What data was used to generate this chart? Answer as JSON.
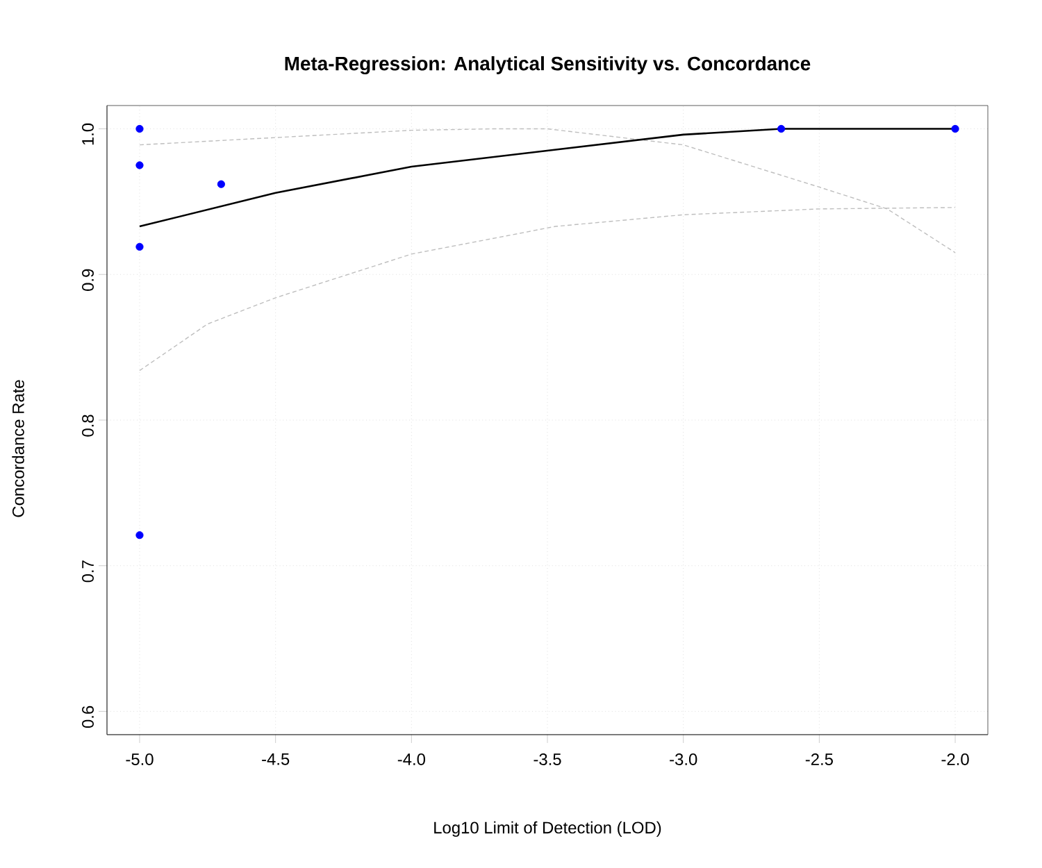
{
  "chart_data": {
    "type": "scatter",
    "title": "Meta-Regression: Analytical Sensitivity vs. Concordance",
    "xlabel": "Log10 Limit of Detection (LOD)",
    "ylabel": "Concordance Rate",
    "xlim": [
      -5.12,
      -1.88
    ],
    "ylim": [
      0.584,
      1.016
    ],
    "xticks": [
      {
        "value": -5,
        "label": "-5.0"
      },
      {
        "value": -4.5,
        "label": "-4.5"
      },
      {
        "value": -4,
        "label": "-4.0"
      },
      {
        "value": -3.5,
        "label": "-3.5"
      },
      {
        "value": -3,
        "label": "-3.0"
      },
      {
        "value": -2.5,
        "label": "-2.5"
      },
      {
        "value": -2,
        "label": "-2.0"
      }
    ],
    "yticks": [
      0.6,
      0.7,
      0.8,
      0.9,
      {
        "value": 1,
        "label": "1.0"
      }
    ],
    "grid": true,
    "series": [
      {
        "type": "line",
        "color": "#bebebe",
        "line_style": "dashed",
        "marker": "none",
        "x": [
          -5,
          -4.5,
          -4,
          -3.7,
          -3.5,
          -3,
          -2.5,
          -2.25,
          -2
        ],
        "values": [
          0.989,
          0.994,
          0.999,
          1.0,
          1.0,
          0.989,
          0.96,
          0.945,
          0.915
        ]
      },
      {
        "type": "line",
        "color": "#bebebe",
        "line_style": "dashed",
        "marker": "none",
        "x": [
          -5,
          -4.75,
          -4.5,
          -4,
          -3.47,
          -3,
          -2.5,
          -2
        ],
        "values": [
          0.834,
          0.866,
          0.884,
          0.914,
          0.933,
          0.941,
          0.945,
          0.946
        ]
      },
      {
        "type": "line",
        "color": "#000000",
        "line_style": "solid",
        "marker": "none",
        "x": [
          -5,
          -4.5,
          -4,
          -3.5,
          -3,
          -2.64,
          -2.5,
          -2.25,
          -2
        ],
        "values": [
          0.933,
          0.956,
          0.974,
          0.985,
          0.996,
          1.0,
          1.0,
          1.0,
          1.0
        ]
      },
      {
        "color": "#0000ff",
        "marker": "circle",
        "x": [
          -5,
          -5,
          -4.7,
          -5,
          -5,
          -2.64,
          -2
        ],
        "values": [
          1.0,
          0.975,
          0.962,
          0.919,
          0.721,
          1.0,
          1.0
        ]
      }
    ]
  }
}
